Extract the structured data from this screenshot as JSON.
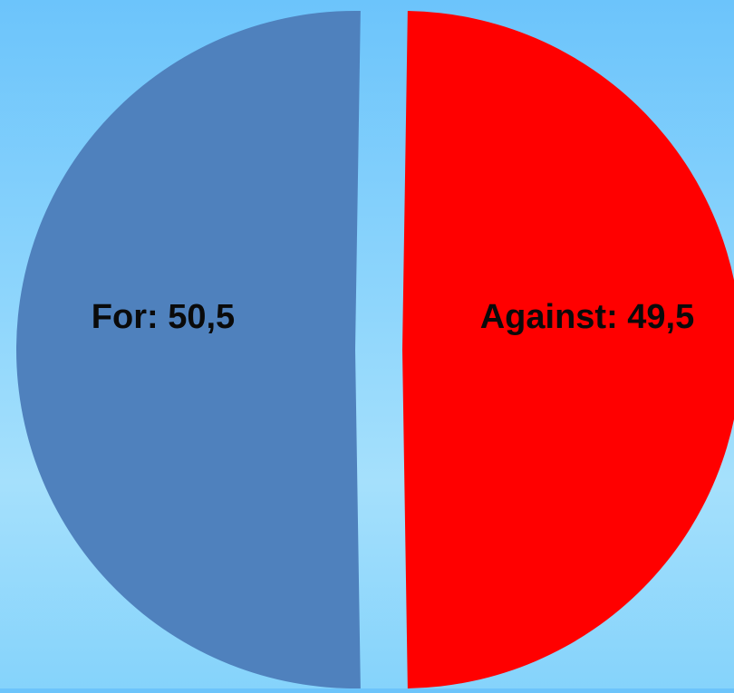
{
  "chart_data": {
    "type": "pie",
    "slices": [
      {
        "label": "For",
        "value": 50.5,
        "display": "For: 50,5",
        "color": "#4f81bd"
      },
      {
        "label": "Against",
        "value": 49.5,
        "display": "Against: 49,5",
        "color": "#ff0000"
      }
    ],
    "exploded": true,
    "legend": "none"
  }
}
